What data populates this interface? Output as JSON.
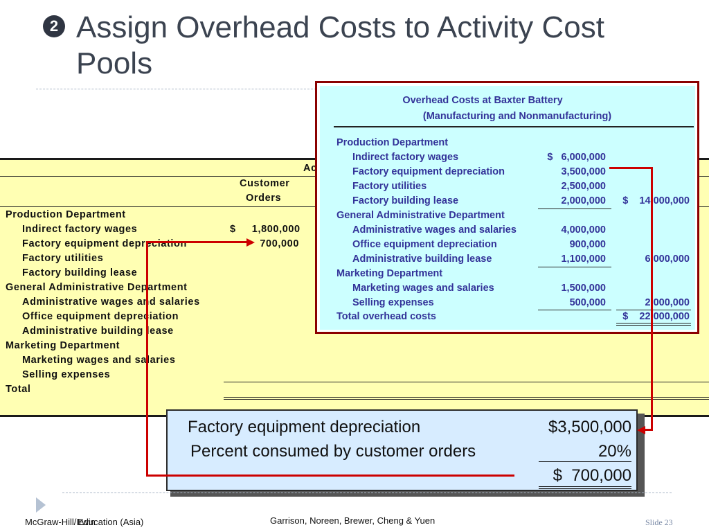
{
  "title": {
    "bullet": "2",
    "text": "Assign Overhead Costs to Activity Cost Pools"
  },
  "worksheet": {
    "header_partial": "Ac",
    "col_header": [
      "Customer",
      "Orders"
    ],
    "rows": [
      {
        "label": "Production Department",
        "value": ""
      },
      {
        "label": "Indirect factory wages",
        "value": "$     1,800,000"
      },
      {
        "label": "Factory equipment depreciation",
        "value": "700,000"
      },
      {
        "label": "Factory utilities",
        "value": ""
      },
      {
        "label": "Factory building lease",
        "value": ""
      },
      {
        "label": "General Administrative Department",
        "value": ""
      },
      {
        "label": "Administrative wages and salaries",
        "value": ""
      },
      {
        "label": "Office equipment depreciation",
        "value": ""
      },
      {
        "label": "Administrative building lease",
        "value": ""
      },
      {
        "label": "Marketing Department",
        "value": ""
      },
      {
        "label": "Marketing wages and salaries",
        "value": ""
      },
      {
        "label": "Selling expenses",
        "value": ""
      },
      {
        "label": "Total",
        "value": ""
      }
    ]
  },
  "overhead": {
    "title1": "Overhead Costs at Baxter Battery",
    "title2": "(Manufacturing and Nonmanufacturing)",
    "rows": [
      {
        "label": "Production Department",
        "c1": "",
        "c2": ""
      },
      {
        "label": "Indirect factory wages",
        "c1": "$   6,000,000",
        "c2": ""
      },
      {
        "label": "Factory equipment depreciation",
        "c1": "3,500,000",
        "c2": ""
      },
      {
        "label": "Factory utilities",
        "c1": "2,500,000",
        "c2": ""
      },
      {
        "label": "Factory building lease",
        "c1": "2,000,000",
        "c2": "$    14,000,000"
      },
      {
        "label": "General Administrative Department",
        "c1": "",
        "c2": ""
      },
      {
        "label": "Administrative wages and salaries",
        "c1": "4,000,000",
        "c2": ""
      },
      {
        "label": "Office equipment depreciation",
        "c1": "900,000",
        "c2": ""
      },
      {
        "label": "Administrative building lease",
        "c1": "1,100,000",
        "c2": "6,000,000"
      },
      {
        "label": "Marketing Department",
        "c1": "",
        "c2": ""
      },
      {
        "label": "Marketing wages and salaries",
        "c1": "1,500,000",
        "c2": ""
      },
      {
        "label": "Selling expenses",
        "c1": "500,000",
        "c2": "2,000,000"
      },
      {
        "label": "Total overhead costs",
        "c1": "",
        "c2": "$    22,000,000"
      }
    ]
  },
  "calc": {
    "line1_label": "Factory equipment depreciation",
    "line1_value": "$3,500,000",
    "line2_label": "Percent consumed by customer orders",
    "line2_value": "20%",
    "line3_value": "$  700,000"
  },
  "footer": {
    "publisher": "McGraw-Hill/Irwin",
    "publisher_overlap": "Education (Asia)",
    "authors": "Garrison, Noreen, Brewer, Cheng & Yuen",
    "slide": "Slide 23"
  },
  "colors": {
    "arrow": "#cc0000",
    "worksheet_bg": "#ffffb3",
    "overhead_bg": "#ccffff",
    "overhead_text": "#333399",
    "calc_bg": "#d7ecff"
  }
}
